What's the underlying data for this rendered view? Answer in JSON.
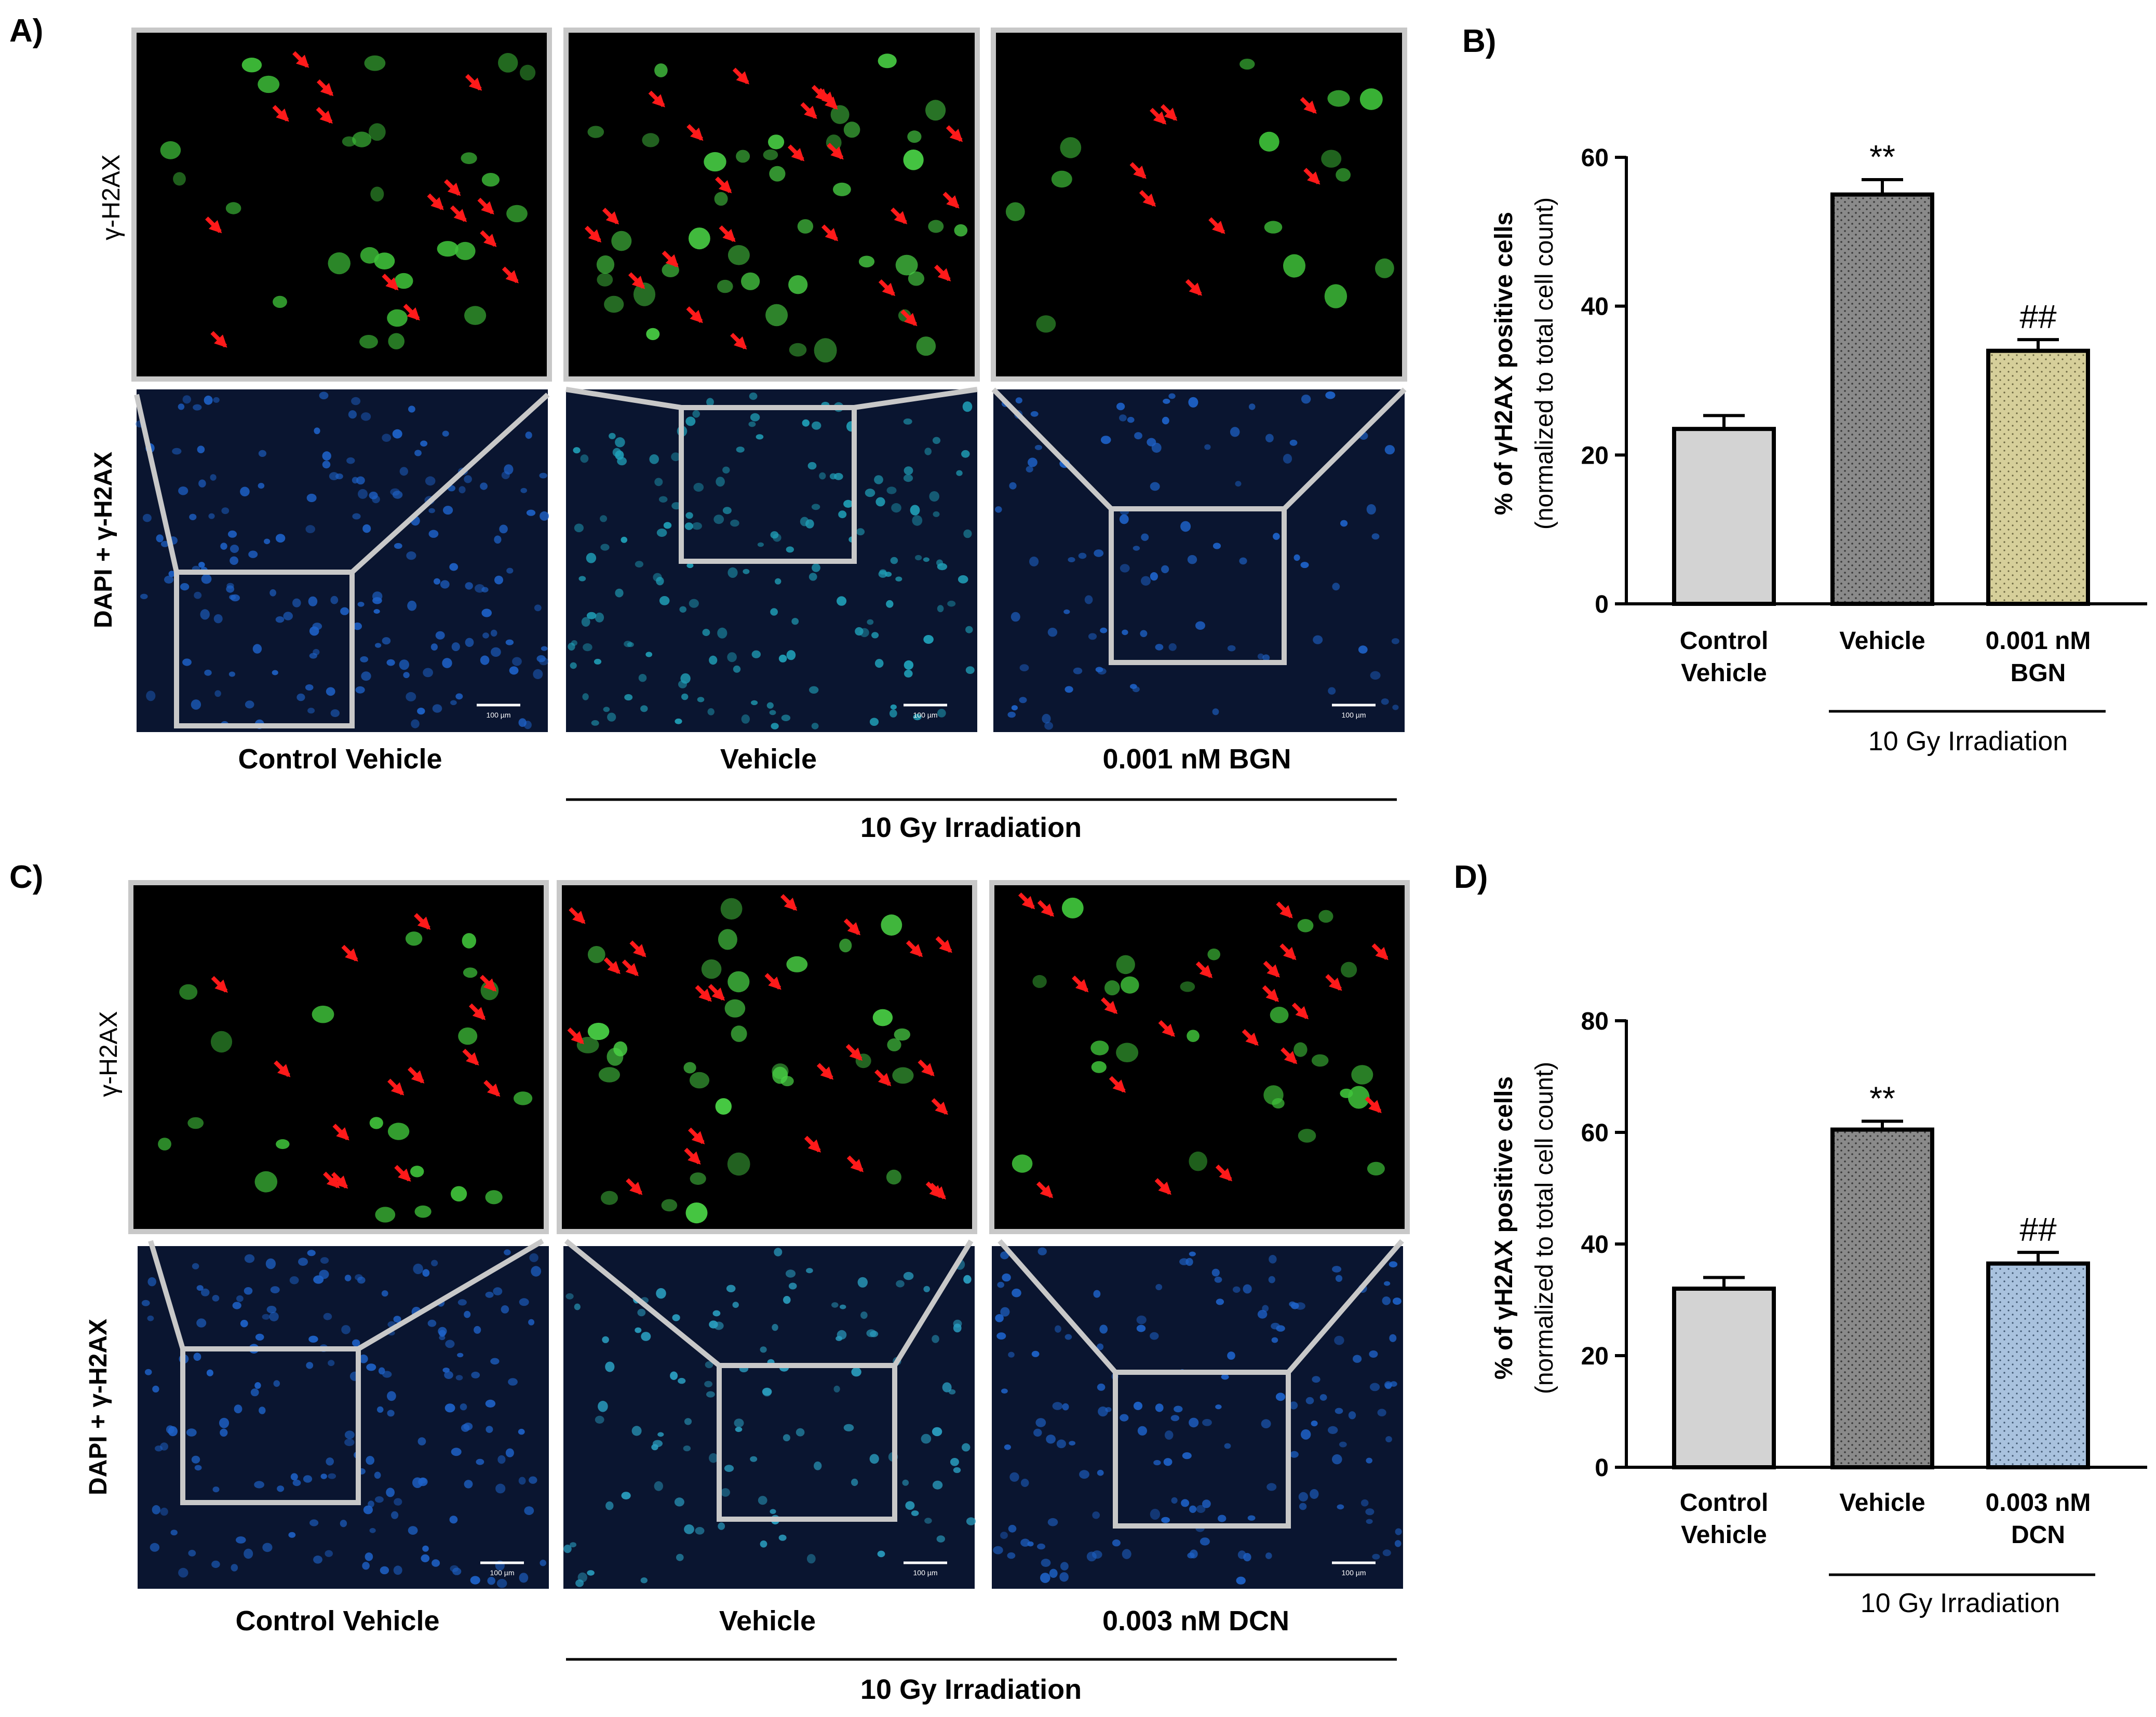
{
  "panels": {
    "A": {
      "letter": "A)",
      "row_label_top": "γ-H2AX",
      "row_label_bottom": "DAPI + γ-H2AX",
      "columns": [
        "Control Vehicle",
        "Vehicle",
        "0.001 nM BGN"
      ],
      "group_label": "10 Gy Irradiation",
      "scale_bar_label": "100 µm"
    },
    "C": {
      "letter": "C)",
      "row_label_top": "γ-H2AX",
      "row_label_bottom": "DAPI + γ-H2AX",
      "columns": [
        "Control Vehicle",
        "Vehicle",
        "0.003 nM DCN"
      ],
      "group_label": "10 Gy Irradiation",
      "scale_bar_label": "100 µm"
    }
  },
  "chart_data": [
    {
      "panel": "B)",
      "type": "bar",
      "categories": [
        [
          "Control",
          "Vehicle"
        ],
        [
          "Vehicle"
        ],
        [
          "0.001 nM",
          "BGN"
        ]
      ],
      "values": [
        23.5,
        55,
        34
      ],
      "errors": [
        1.8,
        2,
        1.5
      ],
      "significance": [
        "",
        "**",
        "##"
      ],
      "bar_colors": [
        "#d3d3d3",
        "#8a8a8a",
        "#d6cf9a"
      ],
      "ylabel_line1": "% of γH2AX positive cells",
      "ylabel_line2": "(normalized to total cell count)",
      "ylim": [
        0,
        60
      ],
      "yticks": [
        0,
        20,
        40,
        60
      ],
      "group_label": "10 Gy Irradiation"
    },
    {
      "panel": "D)",
      "type": "bar",
      "categories": [
        [
          "Control",
          "Vehicle"
        ],
        [
          "Vehicle"
        ],
        [
          "0.003 nM",
          "DCN"
        ]
      ],
      "values": [
        32,
        60.5,
        36.5
      ],
      "errors": [
        2,
        1.5,
        2
      ],
      "significance": [
        "",
        "**",
        "##"
      ],
      "bar_colors": [
        "#d3d3d3",
        "#8a8a8a",
        "#a9c2de"
      ],
      "ylabel_line1": "% of γH2AX positive cells",
      "ylabel_line2": "(normalized to total cell count)",
      "ylim": [
        0,
        80
      ],
      "yticks": [
        0,
        20,
        40,
        60,
        80
      ],
      "group_label": "10 Gy Irradiation"
    }
  ],
  "colors": {
    "frame": "#c8c8c8",
    "arrow": "#ff1a1a",
    "gfp": "#3fc23a",
    "dapi": "#1e62c8"
  }
}
